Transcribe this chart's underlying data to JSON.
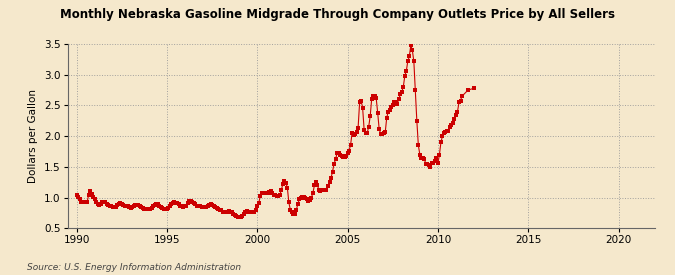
{
  "title": "Monthly Nebraska Gasoline Midgrade Through Company Outlets Price by All Sellers",
  "ylabel": "Dollars per Gallon",
  "source": "Source: U.S. Energy Information Administration",
  "background_color": "#f5e8cc",
  "grid_color": "#999999",
  "data_color": "#cc0000",
  "xlim": [
    1989.5,
    2022
  ],
  "ylim": [
    0.5,
    3.5
  ],
  "xticks": [
    1990,
    1995,
    2000,
    2005,
    2010,
    2015,
    2020
  ],
  "yticks": [
    0.5,
    1.0,
    1.5,
    2.0,
    2.5,
    3.0,
    3.5
  ],
  "prices": [
    [
      1990.0,
      1.04
    ],
    [
      1990.083,
      1.01
    ],
    [
      1990.167,
      0.97
    ],
    [
      1990.25,
      0.93
    ],
    [
      1990.333,
      0.92
    ],
    [
      1990.417,
      0.93
    ],
    [
      1990.5,
      0.92
    ],
    [
      1990.583,
      0.92
    ],
    [
      1990.667,
      1.04
    ],
    [
      1990.75,
      1.1
    ],
    [
      1990.833,
      1.05
    ],
    [
      1990.917,
      1.01
    ],
    [
      1991.0,
      0.97
    ],
    [
      1991.083,
      0.93
    ],
    [
      1991.167,
      0.9
    ],
    [
      1991.25,
      0.88
    ],
    [
      1991.333,
      0.9
    ],
    [
      1991.417,
      0.92
    ],
    [
      1991.5,
      0.93
    ],
    [
      1991.583,
      0.92
    ],
    [
      1991.667,
      0.9
    ],
    [
      1991.75,
      0.88
    ],
    [
      1991.833,
      0.87
    ],
    [
      1991.917,
      0.86
    ],
    [
      1992.0,
      0.85
    ],
    [
      1992.083,
      0.84
    ],
    [
      1992.167,
      0.85
    ],
    [
      1992.25,
      0.88
    ],
    [
      1992.333,
      0.9
    ],
    [
      1992.417,
      0.91
    ],
    [
      1992.5,
      0.89
    ],
    [
      1992.583,
      0.88
    ],
    [
      1992.667,
      0.87
    ],
    [
      1992.75,
      0.86
    ],
    [
      1992.833,
      0.86
    ],
    [
      1992.917,
      0.84
    ],
    [
      1993.0,
      0.83
    ],
    [
      1993.083,
      0.84
    ],
    [
      1993.167,
      0.86
    ],
    [
      1993.25,
      0.88
    ],
    [
      1993.333,
      0.88
    ],
    [
      1993.417,
      0.88
    ],
    [
      1993.5,
      0.86
    ],
    [
      1993.583,
      0.85
    ],
    [
      1993.667,
      0.83
    ],
    [
      1993.75,
      0.82
    ],
    [
      1993.833,
      0.82
    ],
    [
      1993.917,
      0.82
    ],
    [
      1994.0,
      0.82
    ],
    [
      1994.083,
      0.82
    ],
    [
      1994.167,
      0.83
    ],
    [
      1994.25,
      0.86
    ],
    [
      1994.333,
      0.88
    ],
    [
      1994.417,
      0.9
    ],
    [
      1994.5,
      0.89
    ],
    [
      1994.583,
      0.87
    ],
    [
      1994.667,
      0.85
    ],
    [
      1994.75,
      0.83
    ],
    [
      1994.833,
      0.82
    ],
    [
      1994.917,
      0.81
    ],
    [
      1995.0,
      0.82
    ],
    [
      1995.083,
      0.83
    ],
    [
      1995.167,
      0.87
    ],
    [
      1995.25,
      0.9
    ],
    [
      1995.333,
      0.91
    ],
    [
      1995.417,
      0.92
    ],
    [
      1995.5,
      0.91
    ],
    [
      1995.583,
      0.91
    ],
    [
      1995.667,
      0.89
    ],
    [
      1995.75,
      0.87
    ],
    [
      1995.833,
      0.86
    ],
    [
      1995.917,
      0.85
    ],
    [
      1996.0,
      0.86
    ],
    [
      1996.083,
      0.87
    ],
    [
      1996.167,
      0.91
    ],
    [
      1996.25,
      0.95
    ],
    [
      1996.333,
      0.94
    ],
    [
      1996.417,
      0.93
    ],
    [
      1996.5,
      0.91
    ],
    [
      1996.583,
      0.89
    ],
    [
      1996.667,
      0.87
    ],
    [
      1996.75,
      0.86
    ],
    [
      1996.833,
      0.86
    ],
    [
      1996.917,
      0.84
    ],
    [
      1997.0,
      0.84
    ],
    [
      1997.083,
      0.84
    ],
    [
      1997.167,
      0.85
    ],
    [
      1997.25,
      0.87
    ],
    [
      1997.333,
      0.88
    ],
    [
      1997.417,
      0.89
    ],
    [
      1997.5,
      0.88
    ],
    [
      1997.583,
      0.87
    ],
    [
      1997.667,
      0.85
    ],
    [
      1997.75,
      0.83
    ],
    [
      1997.833,
      0.81
    ],
    [
      1997.917,
      0.8
    ],
    [
      1998.0,
      0.79
    ],
    [
      1998.083,
      0.77
    ],
    [
      1998.167,
      0.76
    ],
    [
      1998.25,
      0.76
    ],
    [
      1998.333,
      0.77
    ],
    [
      1998.417,
      0.78
    ],
    [
      1998.5,
      0.77
    ],
    [
      1998.583,
      0.76
    ],
    [
      1998.667,
      0.74
    ],
    [
      1998.75,
      0.72
    ],
    [
      1998.833,
      0.7
    ],
    [
      1998.917,
      0.69
    ],
    [
      1999.0,
      0.69
    ],
    [
      1999.083,
      0.68
    ],
    [
      1999.167,
      0.7
    ],
    [
      1999.25,
      0.74
    ],
    [
      1999.333,
      0.76
    ],
    [
      1999.417,
      0.78
    ],
    [
      1999.5,
      0.77
    ],
    [
      1999.583,
      0.76
    ],
    [
      1999.667,
      0.76
    ],
    [
      1999.75,
      0.76
    ],
    [
      1999.833,
      0.77
    ],
    [
      1999.917,
      0.8
    ],
    [
      2000.0,
      0.87
    ],
    [
      2000.083,
      0.91
    ],
    [
      2000.167,
      1.02
    ],
    [
      2000.25,
      1.07
    ],
    [
      2000.333,
      1.08
    ],
    [
      2000.417,
      1.07
    ],
    [
      2000.5,
      1.07
    ],
    [
      2000.583,
      1.08
    ],
    [
      2000.667,
      1.09
    ],
    [
      2000.75,
      1.1
    ],
    [
      2000.833,
      1.07
    ],
    [
      2000.917,
      1.04
    ],
    [
      2001.0,
      1.04
    ],
    [
      2001.083,
      1.02
    ],
    [
      2001.167,
      1.02
    ],
    [
      2001.25,
      1.04
    ],
    [
      2001.333,
      1.12
    ],
    [
      2001.417,
      1.22
    ],
    [
      2001.5,
      1.27
    ],
    [
      2001.583,
      1.24
    ],
    [
      2001.667,
      1.16
    ],
    [
      2001.75,
      0.92
    ],
    [
      2001.833,
      0.8
    ],
    [
      2001.917,
      0.76
    ],
    [
      2002.0,
      0.74
    ],
    [
      2002.083,
      0.74
    ],
    [
      2002.167,
      0.8
    ],
    [
      2002.25,
      0.9
    ],
    [
      2002.333,
      0.97
    ],
    [
      2002.417,
      1.0
    ],
    [
      2002.5,
      1.01
    ],
    [
      2002.583,
      1.01
    ],
    [
      2002.667,
      1.0
    ],
    [
      2002.75,
      0.97
    ],
    [
      2002.833,
      0.95
    ],
    [
      2002.917,
      0.96
    ],
    [
      2003.0,
      1.0
    ],
    [
      2003.083,
      1.08
    ],
    [
      2003.167,
      1.2
    ],
    [
      2003.25,
      1.26
    ],
    [
      2003.333,
      1.2
    ],
    [
      2003.417,
      1.12
    ],
    [
      2003.5,
      1.1
    ],
    [
      2003.583,
      1.12
    ],
    [
      2003.667,
      1.12
    ],
    [
      2003.75,
      1.12
    ],
    [
      2003.833,
      1.12
    ],
    [
      2003.917,
      1.18
    ],
    [
      2004.0,
      1.26
    ],
    [
      2004.083,
      1.32
    ],
    [
      2004.167,
      1.42
    ],
    [
      2004.25,
      1.55
    ],
    [
      2004.333,
      1.62
    ],
    [
      2004.417,
      1.72
    ],
    [
      2004.5,
      1.72
    ],
    [
      2004.583,
      1.69
    ],
    [
      2004.667,
      1.67
    ],
    [
      2004.75,
      1.66
    ],
    [
      2004.833,
      1.66
    ],
    [
      2004.917,
      1.68
    ],
    [
      2005.0,
      1.72
    ],
    [
      2005.083,
      1.76
    ],
    [
      2005.167,
      1.86
    ],
    [
      2005.25,
      2.05
    ],
    [
      2005.333,
      2.02
    ],
    [
      2005.417,
      2.04
    ],
    [
      2005.5,
      2.07
    ],
    [
      2005.583,
      2.14
    ],
    [
      2005.667,
      2.55
    ],
    [
      2005.75,
      2.58
    ],
    [
      2005.833,
      2.46
    ],
    [
      2005.917,
      2.1
    ],
    [
      2006.0,
      2.05
    ],
    [
      2006.083,
      2.05
    ],
    [
      2006.167,
      2.15
    ],
    [
      2006.25,
      2.32
    ],
    [
      2006.333,
      2.6
    ],
    [
      2006.417,
      2.65
    ],
    [
      2006.5,
      2.65
    ],
    [
      2006.583,
      2.62
    ],
    [
      2006.667,
      2.38
    ],
    [
      2006.75,
      2.11
    ],
    [
      2006.833,
      2.04
    ],
    [
      2006.917,
      2.04
    ],
    [
      2007.0,
      2.05
    ],
    [
      2007.083,
      2.06
    ],
    [
      2007.167,
      2.3
    ],
    [
      2007.25,
      2.4
    ],
    [
      2007.333,
      2.42
    ],
    [
      2007.417,
      2.48
    ],
    [
      2007.5,
      2.5
    ],
    [
      2007.583,
      2.55
    ],
    [
      2007.667,
      2.55
    ],
    [
      2007.75,
      2.53
    ],
    [
      2007.833,
      2.6
    ],
    [
      2007.917,
      2.68
    ],
    [
      2008.0,
      2.72
    ],
    [
      2008.083,
      2.8
    ],
    [
      2008.167,
      2.98
    ],
    [
      2008.25,
      3.06
    ],
    [
      2008.333,
      3.22
    ],
    [
      2008.417,
      3.3
    ],
    [
      2008.5,
      3.48
    ],
    [
      2008.583,
      3.4
    ],
    [
      2008.667,
      3.22
    ],
    [
      2008.75,
      2.75
    ],
    [
      2008.833,
      2.25
    ],
    [
      2008.917,
      1.85
    ],
    [
      2009.0,
      1.7
    ],
    [
      2009.083,
      1.65
    ],
    [
      2009.167,
      1.65
    ],
    [
      2009.25,
      1.62
    ],
    [
      2009.333,
      1.55
    ],
    [
      2009.417,
      1.55
    ],
    [
      2009.5,
      1.53
    ],
    [
      2009.583,
      1.5
    ],
    [
      2009.667,
      1.56
    ],
    [
      2009.75,
      1.56
    ],
    [
      2009.833,
      1.6
    ],
    [
      2009.917,
      1.65
    ],
    [
      2010.0,
      1.56
    ],
    [
      2010.083,
      1.7
    ],
    [
      2010.167,
      1.9
    ],
    [
      2010.25,
      2.0
    ],
    [
      2010.333,
      2.05
    ],
    [
      2010.417,
      2.06
    ],
    [
      2010.5,
      2.08
    ],
    [
      2010.583,
      2.08
    ],
    [
      2010.667,
      2.15
    ],
    [
      2010.75,
      2.18
    ],
    [
      2010.833,
      2.22
    ],
    [
      2010.917,
      2.28
    ],
    [
      2011.0,
      2.35
    ],
    [
      2011.083,
      2.4
    ],
    [
      2011.167,
      2.55
    ],
    [
      2011.25,
      2.58
    ],
    [
      2011.333,
      2.65
    ],
    [
      2011.667,
      2.75
    ],
    [
      2012.0,
      2.78
    ]
  ]
}
